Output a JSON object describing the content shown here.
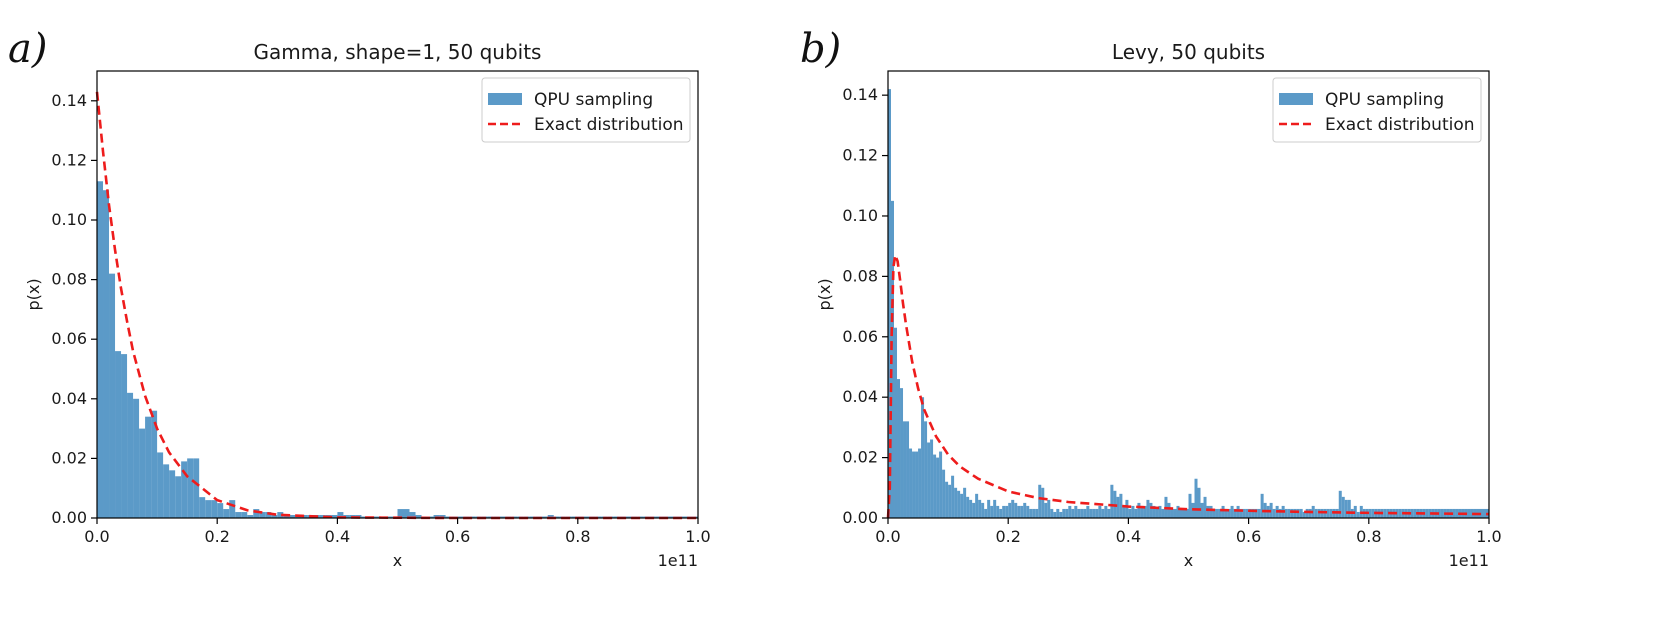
{
  "colors": {
    "bar": "#5b9ac8",
    "exact": "#ee1c1c",
    "axis": "#000000",
    "legend_border": "#cccccc"
  },
  "chart_data": [
    {
      "type": "bar",
      "panel_label": "a)",
      "title": "Gamma, shape=1, 50 qubits",
      "xlabel": "x",
      "ylabel": "p(x)",
      "x_offset_label": "1e11",
      "xlim": [
        0.0,
        1.0
      ],
      "ylim": [
        0.0,
        0.15
      ],
      "x_ticks": [
        0.0,
        0.2,
        0.4,
        0.6,
        0.8,
        1.0
      ],
      "x_tick_labels": [
        "0.0",
        "0.2",
        "0.4",
        "0.6",
        "0.8",
        "1.0"
      ],
      "y_ticks": [
        0.0,
        0.02,
        0.04,
        0.06,
        0.08,
        0.1,
        0.12,
        0.14
      ],
      "y_tick_labels": [
        "0.00",
        "0.02",
        "0.04",
        "0.06",
        "0.08",
        "0.10",
        "0.12",
        "0.14"
      ],
      "legend": {
        "placement": "top-right",
        "entries": [
          "QPU sampling",
          "Exact distribution"
        ]
      },
      "bin_width": 0.01,
      "series": [
        {
          "name": "QPU sampling",
          "kind": "histogram",
          "values": [
            0.113,
            0.11,
            0.082,
            0.056,
            0.055,
            0.042,
            0.04,
            0.03,
            0.034,
            0.036,
            0.022,
            0.018,
            0.016,
            0.014,
            0.019,
            0.02,
            0.02,
            0.007,
            0.006,
            0.006,
            0.005,
            0.003,
            0.006,
            0.002,
            0.002,
            0.001,
            0.003,
            0.002,
            0.002,
            0.001,
            0.002,
            0.001,
            0.001,
            0.001,
            0.001,
            0.001,
            0.001,
            0.001,
            0.001,
            0.001,
            0.002,
            0.001,
            0.001,
            0.001,
            0.0005,
            0.0005,
            0.0005,
            0.0005,
            0.0005,
            0.0005,
            0.003,
            0.003,
            0.002,
            0.001,
            0.0005,
            0.0005,
            0.001,
            0.001,
            0.0005,
            0.0005,
            0.0005,
            0.0005,
            0.0005,
            0.0005,
            0.0005,
            0.0005,
            0.0005,
            0.0005,
            0.0005,
            0.0005,
            0.0005,
            0.0005,
            0.0005,
            0.0005,
            0.0005,
            0.001,
            0.0005,
            0.0005,
            0.0005,
            0.0005,
            0.0005,
            0.0005,
            0.0005,
            0.0005,
            0.0005,
            0.0005,
            0.0005,
            0.0005,
            0.0005,
            0.0005,
            0.0005,
            0.0005,
            0.0005,
            0.0005,
            0.0005,
            0.0005,
            0.0005,
            0.0005,
            0.0005,
            0.0005
          ]
        },
        {
          "name": "Exact distribution",
          "kind": "line",
          "x": [
            0.0,
            0.01,
            0.02,
            0.03,
            0.04,
            0.05,
            0.06,
            0.08,
            0.1,
            0.12,
            0.15,
            0.2,
            0.25,
            0.3,
            0.4,
            0.6,
            1.0
          ],
          "y": [
            0.143,
            0.123,
            0.105,
            0.09,
            0.077,
            0.066,
            0.056,
            0.041,
            0.03,
            0.022,
            0.014,
            0.006,
            0.0026,
            0.0011,
            0.0002,
            0.0,
            0.0
          ]
        }
      ]
    },
    {
      "type": "bar",
      "panel_label": "b)",
      "title": "Levy, 50 qubits",
      "xlabel": "x",
      "ylabel": "p(x)",
      "x_offset_label": "1e11",
      "xlim": [
        0.0,
        1.0
      ],
      "ylim": [
        0.0,
        0.148
      ],
      "x_ticks": [
        0.0,
        0.2,
        0.4,
        0.6,
        0.8,
        1.0
      ],
      "x_tick_labels": [
        "0.0",
        "0.2",
        "0.4",
        "0.6",
        "0.8",
        "1.0"
      ],
      "y_ticks": [
        0.0,
        0.02,
        0.04,
        0.06,
        0.08,
        0.1,
        0.12,
        0.14
      ],
      "y_tick_labels": [
        "0.00",
        "0.02",
        "0.04",
        "0.06",
        "0.08",
        "0.10",
        "0.12",
        "0.14"
      ],
      "legend": {
        "placement": "top-right",
        "entries": [
          "QPU sampling",
          "Exact distribution"
        ]
      },
      "bin_width": 0.005,
      "series": [
        {
          "name": "QPU sampling",
          "kind": "histogram",
          "values": [
            0.142,
            0.105,
            0.063,
            0.046,
            0.043,
            0.032,
            0.032,
            0.023,
            0.022,
            0.022,
            0.023,
            0.04,
            0.032,
            0.025,
            0.026,
            0.021,
            0.02,
            0.022,
            0.016,
            0.012,
            0.011,
            0.014,
            0.01,
            0.009,
            0.008,
            0.01,
            0.007,
            0.006,
            0.005,
            0.008,
            0.006,
            0.005,
            0.003,
            0.006,
            0.004,
            0.006,
            0.004,
            0.003,
            0.004,
            0.004,
            0.005,
            0.006,
            0.005,
            0.004,
            0.004,
            0.005,
            0.004,
            0.003,
            0.003,
            0.003,
            0.011,
            0.01,
            0.005,
            0.006,
            0.003,
            0.002,
            0.003,
            0.002,
            0.003,
            0.003,
            0.004,
            0.003,
            0.004,
            0.003,
            0.003,
            0.003,
            0.004,
            0.003,
            0.003,
            0.003,
            0.004,
            0.003,
            0.004,
            0.003,
            0.011,
            0.009,
            0.007,
            0.008,
            0.004,
            0.006,
            0.003,
            0.004,
            0.003,
            0.005,
            0.004,
            0.004,
            0.006,
            0.005,
            0.004,
            0.003,
            0.004,
            0.003,
            0.007,
            0.005,
            0.003,
            0.003,
            0.004,
            0.003,
            0.003,
            0.003,
            0.008,
            0.005,
            0.013,
            0.01,
            0.005,
            0.007,
            0.004,
            0.004,
            0.003,
            0.003,
            0.003,
            0.004,
            0.003,
            0.003,
            0.004,
            0.003,
            0.004,
            0.003,
            0.003,
            0.003,
            0.003,
            0.003,
            0.003,
            0.003,
            0.008,
            0.005,
            0.004,
            0.005,
            0.003,
            0.004,
            0.003,
            0.004,
            0.003,
            0.003,
            0.003,
            0.003,
            0.003,
            0.003,
            0.002,
            0.003,
            0.003,
            0.004,
            0.003,
            0.003,
            0.003,
            0.003,
            0.003,
            0.003,
            0.003,
            0.003,
            0.009,
            0.007,
            0.006,
            0.006,
            0.003,
            0.004,
            0.002,
            0.004,
            0.003,
            0.003,
            0.003,
            0.003,
            0.003,
            0.003,
            0.003,
            0.003,
            0.003,
            0.003,
            0.003,
            0.003,
            0.003,
            0.003,
            0.003,
            0.003,
            0.003,
            0.003,
            0.003,
            0.003,
            0.003,
            0.003,
            0.003,
            0.003,
            0.003,
            0.003,
            0.003,
            0.003,
            0.003,
            0.003,
            0.003,
            0.003,
            0.003,
            0.003,
            0.003,
            0.003,
            0.003,
            0.003,
            0.003,
            0.003,
            0.003,
            0.003
          ]
        },
        {
          "name": "Exact distribution",
          "kind": "line",
          "x": [
            0.0,
            0.003,
            0.006,
            0.009,
            0.012,
            0.016,
            0.02,
            0.025,
            0.03,
            0.04,
            0.05,
            0.06,
            0.08,
            0.1,
            0.12,
            0.15,
            0.2,
            0.25,
            0.3,
            0.4,
            0.5,
            0.6,
            0.7,
            0.8,
            0.9,
            1.0
          ],
          "y": [
            0.0,
            0.01,
            0.06,
            0.083,
            0.087,
            0.085,
            0.079,
            0.071,
            0.064,
            0.052,
            0.043,
            0.036,
            0.027,
            0.021,
            0.017,
            0.013,
            0.0088,
            0.0066,
            0.0053,
            0.0038,
            0.0029,
            0.0024,
            0.002,
            0.0017,
            0.0015,
            0.0013
          ]
        }
      ]
    }
  ]
}
